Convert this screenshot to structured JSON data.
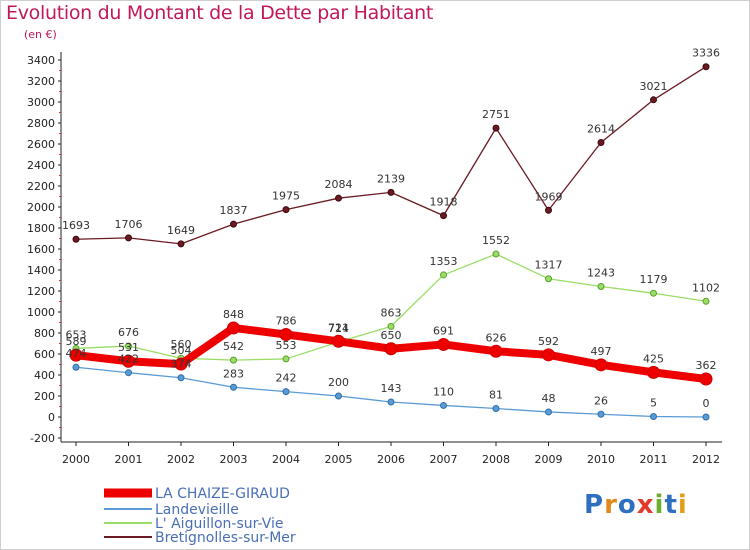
{
  "header": {
    "title": "Evolution du Montant de la Dette par Habitant",
    "unit": "(en €)"
  },
  "logo": {
    "text": "Proxiti"
  },
  "chart_data": {
    "type": "line",
    "title": "Evolution du Montant de la Dette par Habitant",
    "subtitle": "(en €)",
    "xlabel": "",
    "ylabel": "",
    "x": [
      2000,
      2001,
      2002,
      2003,
      2004,
      2005,
      2006,
      2007,
      2008,
      2009,
      2010,
      2011,
      2012
    ],
    "ylim": [
      -200,
      3400
    ],
    "yticks": [
      -200,
      0,
      200,
      400,
      600,
      800,
      1000,
      1200,
      1400,
      1600,
      1800,
      2000,
      2200,
      2400,
      2600,
      2800,
      3000,
      3200,
      3400
    ],
    "grid": false,
    "legend_position": "bottom-left",
    "series": [
      {
        "name": "LA CHAIZE-GIRAUD",
        "color": "#ee0000",
        "values": [
          589,
          531,
          504,
          848,
          786,
          721,
          650,
          691,
          626,
          592,
          497,
          425,
          362
        ]
      },
      {
        "name": "Landevieille",
        "color": "#5b9bd5",
        "values": [
          474,
          422,
          374,
          283,
          242,
          200,
          143,
          110,
          81,
          48,
          26,
          5,
          0
        ]
      },
      {
        "name": "L' Aiguillon-sur-Vie",
        "color": "#99dd66",
        "values": [
          653,
          676,
          560,
          542,
          553,
          714,
          863,
          1353,
          1552,
          1317,
          1243,
          1179,
          1102
        ]
      },
      {
        "name": "Bretignolles-sur-Mer",
        "color": "#6b1a22",
        "values": [
          1693,
          1706,
          1649,
          1837,
          1975,
          2084,
          2139,
          1918,
          2751,
          1969,
          2614,
          3021,
          3336
        ]
      }
    ]
  }
}
